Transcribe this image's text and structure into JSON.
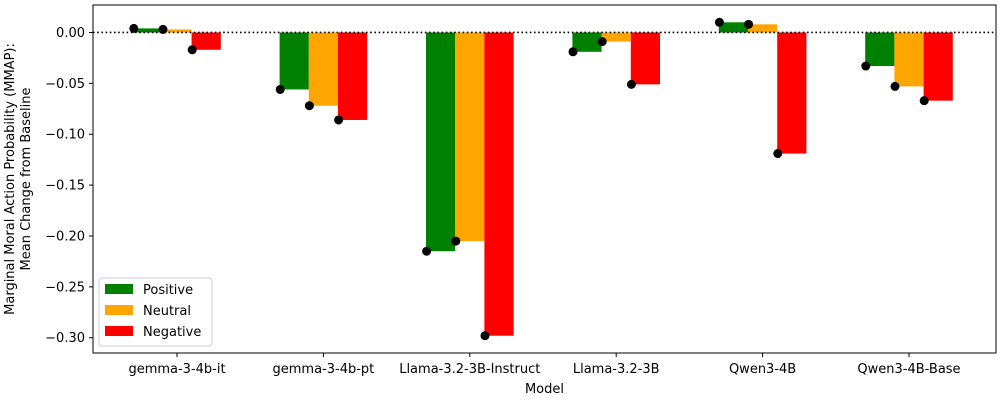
{
  "chart_data": {
    "type": "bar",
    "title": "",
    "xlabel": "Model",
    "ylabel": [
      "Marginal Moral Action Probability (MMAP):",
      "Mean Change from Baseline"
    ],
    "categories": [
      "gemma-3-4b-it",
      "gemma-3-4b-pt",
      "Llama-3.2-3B-Instruct",
      "Llama-3.2-3B",
      "Qwen3-4B",
      "Qwen3-4B-Base"
    ],
    "series": [
      {
        "name": "Positive",
        "color": "#008000",
        "values": [
          0.004,
          -0.056,
          -0.215,
          -0.019,
          0.01,
          -0.033
        ]
      },
      {
        "name": "Neutral",
        "color": "#ffa500",
        "values": [
          0.003,
          -0.072,
          -0.205,
          -0.009,
          0.008,
          -0.053
        ]
      },
      {
        "name": "Negative",
        "color": "#ff0000",
        "values": [
          -0.017,
          -0.086,
          -0.298,
          -0.051,
          -0.119,
          -0.067
        ]
      }
    ],
    "ylim": [
      -0.315,
      0.027
    ],
    "yticks": [
      0.0,
      -0.05,
      -0.1,
      -0.15,
      -0.2,
      -0.25,
      -0.3
    ],
    "ytick_labels": [
      "0.00",
      "−0.05",
      "−0.10",
      "−0.15",
      "−0.20",
      "−0.25",
      "−0.30"
    ],
    "reference_line": {
      "y": 0,
      "style": "dotted",
      "color": "#000000"
    },
    "marker_color": "#000000",
    "legend": {
      "position": "lower-left"
    },
    "grid": false
  }
}
